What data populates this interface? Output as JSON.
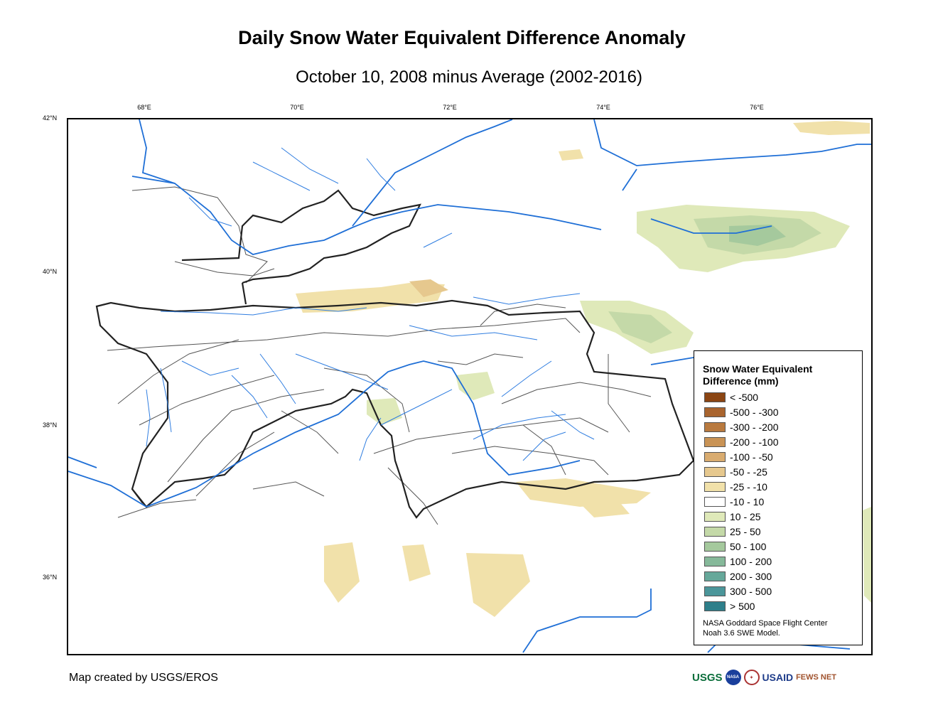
{
  "title": "Daily Snow Water Equivalent Difference Anomaly",
  "subtitle": "October 10, 2008 minus Average (2002-2016)",
  "axes": {
    "lon_ticks": [
      "68°E",
      "70°E",
      "72°E",
      "74°E",
      "76°E"
    ],
    "lat_ticks": [
      "42°N",
      "40°N",
      "38°N",
      "36°N"
    ]
  },
  "legend": {
    "title": "Snow Water Equivalent Difference (mm)",
    "items": [
      {
        "label": "< -500",
        "color": "#8b4513"
      },
      {
        "label": "-500 - -300",
        "color": "#a9642e"
      },
      {
        "label": "-300 - -200",
        "color": "#b97a3f"
      },
      {
        "label": "-200 - -100",
        "color": "#c99355"
      },
      {
        "label": "-100 - -50",
        "color": "#d9ac70"
      },
      {
        "label": "-50 - -25",
        "color": "#e6c88e"
      },
      {
        "label": "-25 - -10",
        "color": "#f1e1aa"
      },
      {
        "label": "-10 - 10",
        "color": "#ffffff"
      },
      {
        "label": "10 - 25",
        "color": "#dfe9b9"
      },
      {
        "label": "25 - 50",
        "color": "#c4d9a8"
      },
      {
        "label": "50 - 100",
        "color": "#a5c99d"
      },
      {
        "label": "100 - 200",
        "color": "#86b99a"
      },
      {
        "label": "200 - 300",
        "color": "#66a89a"
      },
      {
        "label": "300 - 500",
        "color": "#4b969a"
      },
      {
        "label": "> 500",
        "color": "#2e7f8a"
      }
    ],
    "credit_line1": "NASA Goddard Space Flight Center",
    "credit_line2": "Noah 3.6 SWE Model."
  },
  "footer": {
    "created_by": "Map created by USGS/EROS"
  },
  "logos": {
    "usgs": "USGS",
    "nasa": "NASA",
    "usaid": "USAID",
    "fews": "FEWS NET"
  },
  "colors": {
    "river": "#1f6fd6",
    "country_border": "#000000",
    "basin_border": "#555555"
  }
}
